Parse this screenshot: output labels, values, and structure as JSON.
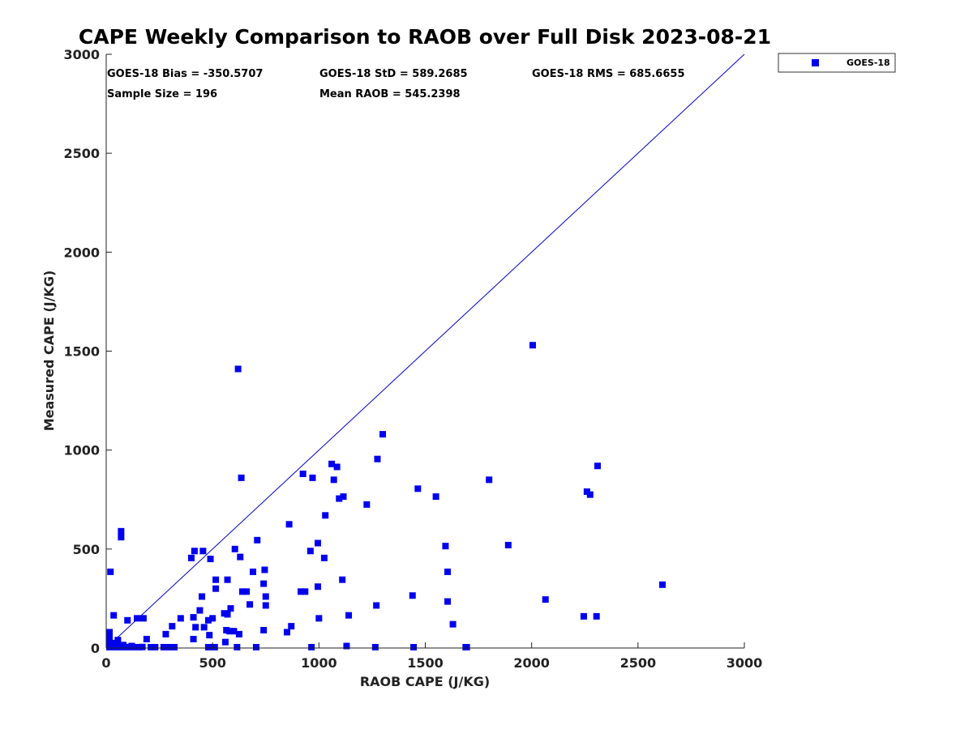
{
  "chart_data": {
    "type": "scatter",
    "title": "CAPE Weekly Comparison to RAOB over Full Disk 2023-08-21",
    "xlabel": "RAOB CAPE (J/KG)",
    "ylabel": "Measured CAPE (J/KG)",
    "xlim": [
      0,
      3000
    ],
    "ylim": [
      0,
      3000
    ],
    "xticks": [
      0,
      500,
      1000,
      1500,
      2000,
      2500,
      3000
    ],
    "yticks": [
      0,
      500,
      1000,
      1500,
      2000,
      2500,
      3000
    ],
    "xtick_labels": [
      "0",
      "500",
      "1000",
      "1500",
      "2000",
      "2500",
      "3000"
    ],
    "ytick_labels": [
      "0",
      "500",
      "1000",
      "1500",
      "2000",
      "2500",
      "3000"
    ],
    "grid": false,
    "legend": {
      "position": "outside-top-right",
      "entries": [
        "GOES-18"
      ]
    },
    "reference_line": {
      "from": [
        0,
        0
      ],
      "to": [
        3000,
        3000
      ],
      "color": "#0000cc"
    },
    "stats": {
      "bias": "GOES-18 Bias = -350.5707",
      "std": "GOES-18 StD = 589.2685",
      "rms": "GOES-18 RMS = 685.6655",
      "sample_size": "Sample Size = 196",
      "mean_raob": "Mean RAOB = 545.2398"
    },
    "series": [
      {
        "name": "GOES-18",
        "color": "#0000ee",
        "marker": "square",
        "points": [
          [
            0,
            80
          ],
          [
            0,
            50
          ],
          [
            0,
            20
          ],
          [
            0,
            5
          ],
          [
            5,
            35
          ],
          [
            10,
            0
          ],
          [
            15,
            10
          ],
          [
            20,
            385
          ],
          [
            25,
            0
          ],
          [
            30,
            15
          ],
          [
            35,
            165
          ],
          [
            40,
            0
          ],
          [
            45,
            25
          ],
          [
            50,
            10
          ],
          [
            55,
            40
          ],
          [
            60,
            0
          ],
          [
            65,
            5
          ],
          [
            70,
            590
          ],
          [
            70,
            560
          ],
          [
            75,
            0
          ],
          [
            80,
            15
          ],
          [
            85,
            5
          ],
          [
            90,
            0
          ],
          [
            100,
            140
          ],
          [
            105,
            0
          ],
          [
            115,
            5
          ],
          [
            120,
            10
          ],
          [
            130,
            0
          ],
          [
            145,
            150
          ],
          [
            155,
            0
          ],
          [
            170,
            5
          ],
          [
            175,
            150
          ],
          [
            190,
            45
          ],
          [
            210,
            0
          ],
          [
            230,
            0
          ],
          [
            270,
            0
          ],
          [
            280,
            70
          ],
          [
            290,
            0
          ],
          [
            300,
            0
          ],
          [
            310,
            110
          ],
          [
            320,
            0
          ],
          [
            350,
            150
          ],
          [
            400,
            455
          ],
          [
            410,
            155
          ],
          [
            410,
            45
          ],
          [
            415,
            490
          ],
          [
            420,
            105
          ],
          [
            440,
            190
          ],
          [
            450,
            260
          ],
          [
            455,
            490
          ],
          [
            460,
            105
          ],
          [
            480,
            0
          ],
          [
            480,
            140
          ],
          [
            485,
            65
          ],
          [
            490,
            450
          ],
          [
            495,
            0
          ],
          [
            500,
            150
          ],
          [
            510,
            0
          ],
          [
            515,
            345
          ],
          [
            515,
            300
          ],
          [
            555,
            175
          ],
          [
            560,
            30
          ],
          [
            565,
            90
          ],
          [
            570,
            345
          ],
          [
            570,
            170
          ],
          [
            580,
            85
          ],
          [
            585,
            200
          ],
          [
            600,
            85
          ],
          [
            605,
            500
          ],
          [
            615,
            0
          ],
          [
            620,
            1410
          ],
          [
            625,
            70
          ],
          [
            630,
            460
          ],
          [
            635,
            860
          ],
          [
            640,
            285
          ],
          [
            660,
            285
          ],
          [
            675,
            220
          ],
          [
            690,
            385
          ],
          [
            705,
            0
          ],
          [
            710,
            545
          ],
          [
            740,
            90
          ],
          [
            740,
            325
          ],
          [
            745,
            395
          ],
          [
            750,
            215
          ],
          [
            750,
            260
          ],
          [
            850,
            80
          ],
          [
            860,
            625
          ],
          [
            870,
            110
          ],
          [
            915,
            285
          ],
          [
            925,
            880
          ],
          [
            935,
            285
          ],
          [
            960,
            490
          ],
          [
            965,
            0
          ],
          [
            970,
            860
          ],
          [
            995,
            530
          ],
          [
            995,
            310
          ],
          [
            1000,
            150
          ],
          [
            1025,
            455
          ],
          [
            1030,
            670
          ],
          [
            1060,
            930
          ],
          [
            1070,
            850
          ],
          [
            1085,
            915
          ],
          [
            1095,
            755
          ],
          [
            1110,
            345
          ],
          [
            1115,
            765
          ],
          [
            1130,
            10
          ],
          [
            1140,
            165
          ],
          [
            1225,
            725
          ],
          [
            1265,
            0
          ],
          [
            1270,
            215
          ],
          [
            1275,
            955
          ],
          [
            1300,
            1080
          ],
          [
            1440,
            265
          ],
          [
            1445,
            0
          ],
          [
            1465,
            805
          ],
          [
            1550,
            765
          ],
          [
            1595,
            515
          ],
          [
            1605,
            235
          ],
          [
            1605,
            385
          ],
          [
            1630,
            120
          ],
          [
            1690,
            0
          ],
          [
            1695,
            0
          ],
          [
            1800,
            850
          ],
          [
            1890,
            520
          ],
          [
            2005,
            1530
          ],
          [
            2065,
            245
          ],
          [
            2245,
            160
          ],
          [
            2260,
            790
          ],
          [
            2275,
            775
          ],
          [
            2305,
            160
          ],
          [
            2310,
            920
          ],
          [
            2615,
            320
          ]
        ]
      }
    ]
  }
}
